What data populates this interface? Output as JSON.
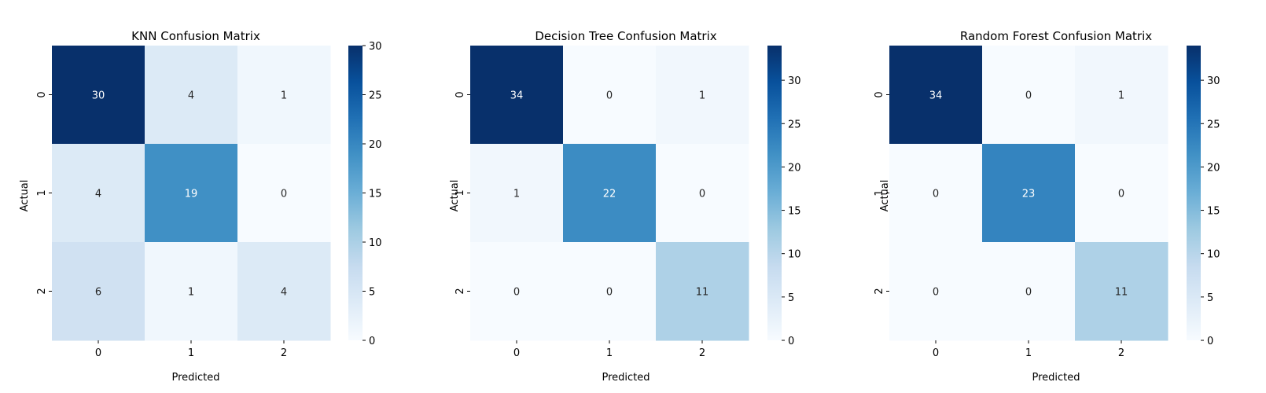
{
  "chart_data": [
    {
      "type": "heatmap",
      "title": "KNN Confusion Matrix",
      "xlabel": "Predicted",
      "ylabel": "Actual",
      "x_categories": [
        "0",
        "1",
        "2"
      ],
      "y_categories": [
        "0",
        "1",
        "2"
      ],
      "values": [
        [
          30,
          4,
          1
        ],
        [
          4,
          19,
          0
        ],
        [
          6,
          1,
          4
        ]
      ],
      "colormap": "Blues",
      "colorbar": {
        "min": 0,
        "max": 30,
        "ticks": [
          0,
          5,
          10,
          15,
          20,
          25,
          30
        ]
      },
      "annotations": true
    },
    {
      "type": "heatmap",
      "title": "Decision Tree Confusion Matrix",
      "xlabel": "Predicted",
      "ylabel": "Actual",
      "x_categories": [
        "0",
        "1",
        "2"
      ],
      "y_categories": [
        "0",
        "1",
        "2"
      ],
      "values": [
        [
          34,
          0,
          1
        ],
        [
          1,
          22,
          0
        ],
        [
          0,
          0,
          11
        ]
      ],
      "colormap": "Blues",
      "colorbar": {
        "min": 0,
        "max": 34,
        "ticks": [
          0,
          5,
          10,
          15,
          20,
          25,
          30
        ]
      },
      "annotations": true
    },
    {
      "type": "heatmap",
      "title": "Random Forest Confusion Matrix",
      "xlabel": "Predicted",
      "ylabel": "Actual",
      "x_categories": [
        "0",
        "1",
        "2"
      ],
      "y_categories": [
        "0",
        "1",
        "2"
      ],
      "values": [
        [
          34,
          0,
          1
        ],
        [
          0,
          23,
          0
        ],
        [
          0,
          0,
          11
        ]
      ],
      "colormap": "Blues",
      "colorbar": {
        "min": 0,
        "max": 34,
        "ticks": [
          0,
          5,
          10,
          15,
          20,
          25,
          30
        ]
      },
      "annotations": true
    }
  ],
  "colors": {
    "blues_stops": [
      "#f7fbff",
      "#deebf7",
      "#c6dbef",
      "#9ecae1",
      "#6baed6",
      "#4292c6",
      "#2171b5",
      "#08519c",
      "#08306b"
    ],
    "annot_light": "#ffffff",
    "annot_dark": "#262626"
  }
}
